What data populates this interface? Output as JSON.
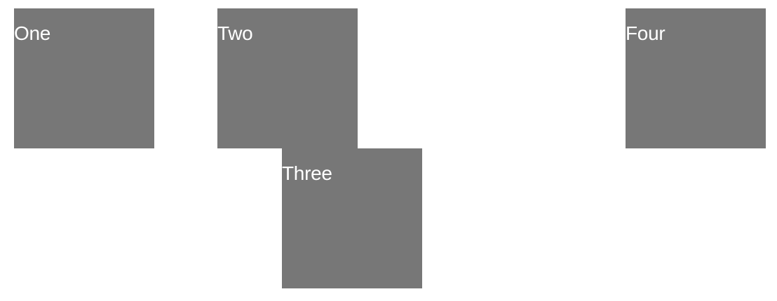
{
  "boxes": {
    "one": {
      "label": "One"
    },
    "two": {
      "label": "Two"
    },
    "three": {
      "label": "Three"
    },
    "four": {
      "label": "Four"
    }
  },
  "colors": {
    "box_fill": "#777777",
    "label_text": "#ffffff",
    "background": "#ffffff"
  }
}
